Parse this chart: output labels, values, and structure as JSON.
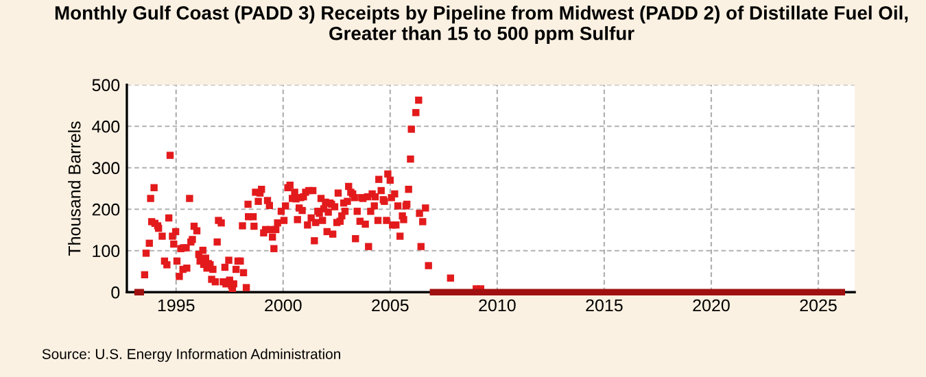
{
  "chart_data": {
    "type": "scatter",
    "title": "Monthly Gulf Coast (PADD 3) Receipts by Pipeline from Midwest (PADD 2) of Distillate Fuel Oil,\nGreater than 15 to 500 ppm Sulfur",
    "ylabel": "Thousand Barrels",
    "annotations": [
      "Source: U.S. Energy Information Administration"
    ],
    "grid": true,
    "xlim": [
      1992.7,
      2026.7
    ],
    "xticks": [
      1995,
      2000,
      2005,
      2010,
      2015,
      2020,
      2025
    ],
    "ylim": [
      0,
      500
    ],
    "yticks": [
      0,
      100,
      200,
      300,
      400,
      500
    ],
    "series": [
      {
        "color": "#e31a1c",
        "marker": "square",
        "x": [
          1993.53,
          1993.6,
          1993.75,
          1993.81,
          1993.86,
          1993.97,
          1994.01,
          1994.14,
          1994.18,
          1994.35,
          1994.46,
          1994.57,
          1994.66,
          1994.72,
          1994.83,
          1994.89,
          1994.98,
          1995.04,
          1995.15,
          1995.22,
          1995.32,
          1995.34,
          1995.47,
          1995.5,
          1995.63,
          1995.69,
          1995.76,
          1995.84,
          1995.97,
          1996.06,
          1996.12,
          1996.25,
          1996.29,
          1996.38,
          1996.44,
          1996.51,
          1996.59,
          1996.66,
          1996.72,
          1996.83,
          1996.92,
          1996.98,
          1997.11,
          1997.2,
          1997.28,
          1997.33,
          1997.46,
          1997.5,
          1997.59,
          1997.63,
          1997.69,
          1997.8,
          1997.89,
          1998.0,
          1998.1,
          1998.15,
          1998.28,
          1998.36,
          1998.38,
          1998.6,
          1998.64,
          1998.71,
          1998.84,
          1998.92,
          1998.99,
          1999.09,
          1999.18,
          1999.27,
          1999.36,
          1999.4,
          1999.5,
          1999.57,
          1999.66,
          1999.74,
          1999.91,
          2000.04,
          2000.11,
          2000.22,
          2000.32,
          2000.43,
          2000.54,
          2000.6,
          2000.67,
          2000.75,
          2000.82,
          2000.89,
          2000.95,
          2001.05,
          2001.14,
          2001.2,
          2001.31,
          2001.39,
          2001.46,
          2001.52,
          2001.62,
          2001.69,
          2001.77,
          2001.84,
          2001.9,
          2001.98,
          2002.05,
          2002.11,
          2002.19,
          2002.26,
          2002.32,
          2002.41,
          2002.51,
          2002.57,
          2002.66,
          2002.74,
          2002.83,
          2002.89,
          2003.0,
          2003.06,
          2003.16,
          2003.25,
          2003.33,
          2003.38,
          2003.46,
          2003.59,
          2003.67,
          2003.73,
          2003.84,
          2003.95,
          2003.99,
          2004.09,
          2004.16,
          2004.26,
          2004.3,
          2004.43,
          2004.47,
          2004.58,
          2004.68,
          2004.73,
          2004.83,
          2004.89,
          2005.0,
          2005.06,
          2005.11,
          2005.21,
          2005.27,
          2005.36,
          2005.46,
          2005.57,
          2005.63,
          2005.74,
          2005.78,
          2005.86,
          2005.95,
          2005.99,
          2006.2,
          2006.33,
          2006.37,
          2006.44,
          2006.52,
          2006.65,
          2006.79,
          2007.82,
          2009.02,
          2009.23
        ],
        "values": [
          42,
          94,
          118,
          226,
          170,
          252,
          166,
          160,
          154,
          135,
          75,
          66,
          179,
          330,
          135,
          116,
          146,
          75,
          38,
          105,
          55,
          107,
          107,
          58,
          226,
          121,
          127,
          159,
          148,
          91,
          75,
          101,
          67,
          82,
          58,
          69,
          66,
          31,
          55,
          25,
          121,
          173,
          167,
          25,
          60,
          20,
          77,
          29,
          16,
          9,
          20,
          55,
          75,
          75,
          160,
          47,
          11,
          212,
          182,
          182,
          159,
          241,
          219,
          239,
          248,
          143,
          151,
          221,
          209,
          151,
          133,
          105,
          151,
          167,
          195,
          173,
          208,
          252,
          258,
          226,
          241,
          225,
          175,
          203,
          228,
          197,
          230,
          241,
          162,
          245,
          179,
          245,
          124,
          168,
          195,
          190,
          226,
          173,
          201,
          217,
          146,
          193,
          215,
          212,
          140,
          206,
          168,
          239,
          171,
          184,
          215,
          195,
          219,
          255,
          241,
          237,
          228,
          129,
          195,
          171,
          228,
          226,
          164,
          230,
          110,
          195,
          237,
          208,
          230,
          173,
          272,
          245,
          223,
          219,
          173,
          285,
          270,
          228,
          162,
          237,
          162,
          208,
          135,
          184,
          175,
          208,
          212,
          248,
          321,
          393,
          433,
          463,
          190,
          110,
          170,
          203,
          64,
          34,
          8,
          8
        ]
      },
      {
        "type": "line",
        "marker": "none",
        "color": "#a01010",
        "x": [
          1993.05,
          1993.5,
          2000,
          2006.85,
          2026.25
        ],
        "values": [
          0,
          0,
          null,
          0,
          0
        ]
      }
    ]
  }
}
